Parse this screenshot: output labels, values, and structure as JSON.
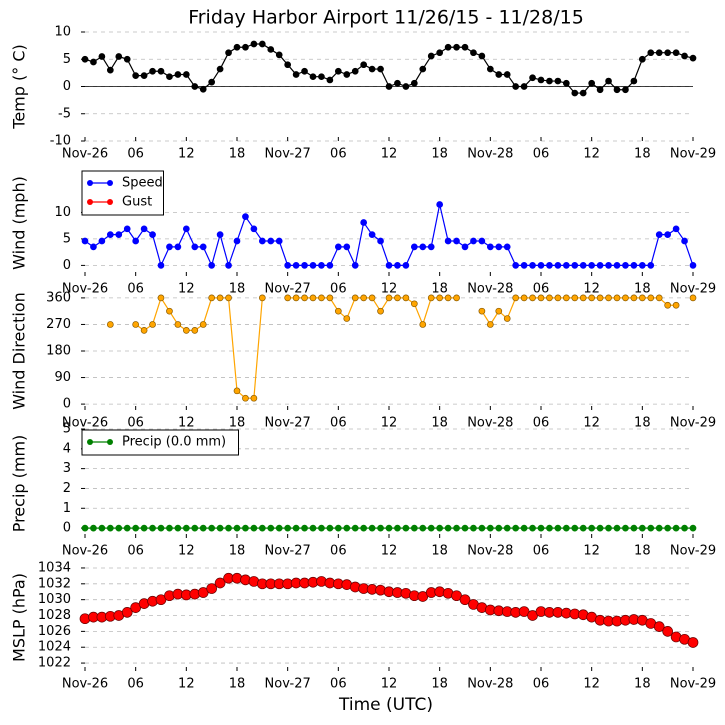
{
  "chart_data": [
    {
      "type": "line",
      "title": "Friday Harbor Airport 11/26/15 - 11/28/15",
      "ylabel": "Temp (° C)",
      "x": [
        0,
        1,
        2,
        3,
        4,
        5,
        6,
        7,
        8,
        9,
        10,
        11,
        12,
        13,
        14,
        15,
        16,
        17,
        18,
        19,
        20,
        21,
        22,
        23,
        24,
        25,
        26,
        27,
        28,
        29,
        30,
        31,
        32,
        33,
        34,
        35,
        36,
        37,
        38,
        39,
        40,
        41,
        42,
        43,
        44,
        45,
        46,
        47,
        48,
        49,
        50,
        51,
        52,
        53,
        54,
        55,
        56,
        57,
        58,
        59,
        60,
        61,
        62,
        63,
        64,
        65,
        66,
        67,
        68,
        69,
        70,
        71,
        72
      ],
      "xlim": [
        0,
        72
      ],
      "xticks": [
        {
          "value": 0,
          "label": "Nov-26"
        },
        {
          "value": 6,
          "label": "06"
        },
        12,
        18,
        {
          "value": 24,
          "label": "Nov-27"
        },
        {
          "value": 30,
          "label": "06"
        },
        {
          "value": 36,
          "label": "12"
        },
        {
          "value": 42,
          "label": "18"
        },
        {
          "value": 48,
          "label": "Nov-28"
        },
        {
          "value": 54,
          "label": "06"
        },
        {
          "value": 60,
          "label": "12"
        },
        {
          "value": 66,
          "label": "18"
        },
        {
          "value": 72,
          "label": "Nov-29"
        }
      ],
      "ylim": [
        -10,
        10
      ],
      "yticks": [
        -10,
        -5,
        0,
        5,
        10
      ],
      "grid": true,
      "hline": 0,
      "series": [
        {
          "name": null,
          "color": "#000000",
          "values": [
            5,
            4.5,
            5.5,
            3,
            5.5,
            5,
            2,
            2,
            2.8,
            2.8,
            1.8,
            2.2,
            2.2,
            0,
            -0.5,
            0.8,
            3.2,
            6.2,
            7.2,
            7.2,
            7.8,
            7.8,
            6.8,
            5.8,
            4,
            2.2,
            2.8,
            1.8,
            1.8,
            1.2,
            2.8,
            2.2,
            2.8,
            4,
            3.2,
            3.2,
            0,
            0.6,
            0,
            0.6,
            3.2,
            5.6,
            6.2,
            7.2,
            7.2,
            7.2,
            6.2,
            5.6,
            3.2,
            2.2,
            2.2,
            0,
            0,
            1.6,
            1.2,
            1,
            1,
            0.6,
            -1.2,
            -1.2,
            0.6,
            -0.6,
            1,
            -0.6,
            -0.6,
            1,
            5,
            6.2,
            6.2,
            6.2,
            6.2,
            5.6,
            5.2
          ]
        }
      ]
    },
    {
      "type": "line",
      "ylabel": "Wind (mph)",
      "legend": "upper left",
      "x": [
        0,
        1,
        2,
        3,
        4,
        5,
        6,
        7,
        8,
        9,
        10,
        11,
        12,
        13,
        14,
        15,
        16,
        17,
        18,
        19,
        20,
        21,
        22,
        23,
        24,
        25,
        26,
        27,
        28,
        29,
        30,
        31,
        32,
        33,
        34,
        35,
        36,
        37,
        38,
        39,
        40,
        41,
        42,
        43,
        44,
        45,
        46,
        47,
        48,
        49,
        50,
        51,
        52,
        53,
        54,
        55,
        56,
        57,
        58,
        59,
        60,
        61,
        62,
        63,
        64,
        65,
        66,
        67,
        68,
        69,
        70,
        71,
        72
      ],
      "xlim": [
        0,
        72
      ],
      "xticks": [
        {
          "value": 0,
          "label": "Nov-26"
        },
        {
          "value": 6,
          "label": "06"
        },
        12,
        18,
        {
          "value": 24,
          "label": "Nov-27"
        },
        {
          "value": 30,
          "label": "06"
        },
        {
          "value": 36,
          "label": "12"
        },
        {
          "value": 42,
          "label": "18"
        },
        {
          "value": 48,
          "label": "Nov-28"
        },
        {
          "value": 54,
          "label": "06"
        },
        {
          "value": 60,
          "label": "12"
        },
        {
          "value": 66,
          "label": "18"
        },
        {
          "value": 72,
          "label": "Nov-29"
        }
      ],
      "ylim": [
        -2,
        18
      ],
      "yticks": [
        0,
        5,
        10
      ],
      "grid": true,
      "series": [
        {
          "name": "Speed",
          "color": "#0000ff",
          "values": [
            4.6,
            3.5,
            4.6,
            5.8,
            5.8,
            6.9,
            4.6,
            6.9,
            5.8,
            0,
            3.5,
            3.5,
            6.9,
            3.5,
            3.5,
            0,
            5.8,
            0,
            4.6,
            9.2,
            6.9,
            4.6,
            4.6,
            4.6,
            0,
            0,
            0,
            0,
            0,
            0,
            3.5,
            3.5,
            0,
            8.1,
            5.8,
            4.6,
            0,
            0,
            0,
            3.5,
            3.5,
            3.5,
            11.5,
            4.6,
            4.6,
            3.5,
            4.6,
            4.6,
            3.5,
            3.5,
            3.5,
            0,
            0,
            0,
            0,
            0,
            0,
            0,
            0,
            0,
            0,
            0,
            0,
            0,
            0,
            0,
            0,
            0,
            5.8,
            5.8,
            6.9,
            4.6,
            0
          ]
        },
        {
          "name": "Gust",
          "color": "#ff0000",
          "values": [
            null,
            null,
            null,
            null,
            null,
            null,
            null,
            null,
            null,
            null,
            null,
            null,
            null,
            null,
            null,
            null,
            null,
            null,
            null,
            null,
            null,
            null,
            null,
            null,
            null,
            null,
            null,
            null,
            null,
            null,
            null,
            null,
            null,
            null,
            null,
            null,
            null,
            null,
            null,
            null,
            null,
            null,
            null,
            null,
            null,
            null,
            null,
            null,
            null,
            null,
            null,
            null,
            null,
            null,
            null,
            null,
            null,
            null,
            null,
            null,
            null,
            null,
            null,
            null,
            null,
            null,
            null,
            null,
            null,
            null,
            null,
            null,
            null
          ]
        }
      ]
    },
    {
      "type": "line",
      "ylabel": "Wind Direction",
      "x": [
        0,
        1,
        2,
        3,
        4,
        5,
        6,
        7,
        8,
        9,
        10,
        11,
        12,
        13,
        14,
        15,
        16,
        17,
        18,
        19,
        20,
        21,
        22,
        23,
        24,
        25,
        26,
        27,
        28,
        29,
        30,
        31,
        32,
        33,
        34,
        35,
        36,
        37,
        38,
        39,
        40,
        41,
        42,
        43,
        44,
        45,
        46,
        47,
        48,
        49,
        50,
        51,
        52,
        53,
        54,
        55,
        56,
        57,
        58,
        59,
        60,
        61,
        62,
        63,
        64,
        65,
        66,
        67,
        68,
        69,
        70,
        71,
        72
      ],
      "xlim": [
        0,
        72
      ],
      "xticks": [
        {
          "value": 0,
          "label": "Nov-26"
        },
        {
          "value": 6,
          "label": "06"
        },
        12,
        18,
        {
          "value": 24,
          "label": "Nov-27"
        },
        {
          "value": 30,
          "label": "06"
        },
        {
          "value": 36,
          "label": "12"
        },
        {
          "value": 42,
          "label": "18"
        },
        {
          "value": 48,
          "label": "Nov-28"
        },
        {
          "value": 54,
          "label": "06"
        },
        {
          "value": 60,
          "label": "12"
        },
        {
          "value": 66,
          "label": "18"
        },
        {
          "value": 72,
          "label": "Nov-29"
        }
      ],
      "ylim": [
        -20,
        380
      ],
      "yticks": [
        0,
        90,
        180,
        270,
        360
      ],
      "grid": true,
      "series": [
        {
          "name": null,
          "color": "#ffa500",
          "values": [
            null,
            null,
            null,
            270,
            null,
            null,
            270,
            250,
            270,
            360,
            315,
            270,
            250,
            250,
            270,
            360,
            360,
            360,
            45,
            20,
            20,
            360,
            null,
            null,
            360,
            360,
            360,
            360,
            360,
            360,
            315,
            290,
            360,
            360,
            360,
            315,
            360,
            360,
            360,
            340,
            270,
            360,
            360,
            360,
            360,
            null,
            null,
            315,
            270,
            315,
            290,
            360,
            360,
            360,
            360,
            360,
            360,
            360,
            360,
            360,
            360,
            360,
            360,
            360,
            360,
            360,
            360,
            360,
            360,
            335,
            335,
            null,
            360
          ]
        }
      ]
    },
    {
      "type": "line",
      "ylabel": "Precip (mm)",
      "legend": "upper left",
      "x": [
        0,
        1,
        2,
        3,
        4,
        5,
        6,
        7,
        8,
        9,
        10,
        11,
        12,
        13,
        14,
        15,
        16,
        17,
        18,
        19,
        20,
        21,
        22,
        23,
        24,
        25,
        26,
        27,
        28,
        29,
        30,
        31,
        32,
        33,
        34,
        35,
        36,
        37,
        38,
        39,
        40,
        41,
        42,
        43,
        44,
        45,
        46,
        47,
        48,
        49,
        50,
        51,
        52,
        53,
        54,
        55,
        56,
        57,
        58,
        59,
        60,
        61,
        62,
        63,
        64,
        65,
        66,
        67,
        68,
        69,
        70,
        71,
        72
      ],
      "xlim": [
        0,
        72
      ],
      "xticks": [
        {
          "value": 0,
          "label": "Nov-26"
        },
        {
          "value": 6,
          "label": "06"
        },
        12,
        18,
        {
          "value": 24,
          "label": "Nov-27"
        },
        {
          "value": 30,
          "label": "06"
        },
        {
          "value": 36,
          "label": "12"
        },
        {
          "value": 42,
          "label": "18"
        },
        {
          "value": 48,
          "label": "Nov-28"
        },
        {
          "value": 54,
          "label": "06"
        },
        {
          "value": 60,
          "label": "12"
        },
        {
          "value": 66,
          "label": "18"
        },
        {
          "value": 72,
          "label": "Nov-29"
        }
      ],
      "ylim": [
        -0.5,
        5
      ],
      "yticks": [
        0,
        1,
        2,
        3,
        4,
        5
      ],
      "grid": true,
      "series": [
        {
          "name": "Precip (0.0 mm)",
          "color": "#008000",
          "values": [
            0,
            0,
            0,
            0,
            0,
            0,
            0,
            0,
            0,
            0,
            0,
            0,
            0,
            0,
            0,
            0,
            0,
            0,
            0,
            0,
            0,
            0,
            0,
            0,
            0,
            0,
            0,
            0,
            0,
            0,
            0,
            0,
            0,
            0,
            0,
            0,
            0,
            0,
            0,
            0,
            0,
            0,
            0,
            0,
            0,
            0,
            0,
            0,
            0,
            0,
            0,
            0,
            0,
            0,
            0,
            0,
            0,
            0,
            0,
            0,
            0,
            0,
            0,
            0,
            0,
            0,
            0,
            0,
            0,
            0,
            0,
            0,
            0
          ]
        }
      ]
    },
    {
      "type": "scatter",
      "ylabel": "MSLP (hPa)",
      "xlabel": "Time (UTC)",
      "x": [
        0,
        1,
        2,
        3,
        4,
        5,
        6,
        7,
        8,
        9,
        10,
        11,
        12,
        13,
        14,
        15,
        16,
        17,
        18,
        19,
        20,
        21,
        22,
        23,
        24,
        25,
        26,
        27,
        28,
        29,
        30,
        31,
        32,
        33,
        34,
        35,
        36,
        37,
        38,
        39,
        40,
        41,
        42,
        43,
        44,
        45,
        46,
        47,
        48,
        49,
        50,
        51,
        52,
        53,
        54,
        55,
        56,
        57,
        58,
        59,
        60,
        61,
        62,
        63,
        64,
        65,
        66,
        67,
        68,
        69,
        70,
        71,
        72
      ],
      "xlim": [
        0,
        72
      ],
      "xticks": [
        {
          "value": 0,
          "label": "Nov-26"
        },
        {
          "value": 6,
          "label": "06"
        },
        12,
        18,
        {
          "value": 24,
          "label": "Nov-27"
        },
        {
          "value": 30,
          "label": "06"
        },
        {
          "value": 36,
          "label": "12"
        },
        {
          "value": 42,
          "label": "18"
        },
        {
          "value": 48,
          "label": "Nov-28"
        },
        {
          "value": 54,
          "label": "06"
        },
        {
          "value": 60,
          "label": "12"
        },
        {
          "value": 66,
          "label": "18"
        },
        {
          "value": 72,
          "label": "Nov-29"
        }
      ],
      "ylim": [
        1021,
        1034.5
      ],
      "yticks": [
        1022,
        1024,
        1026,
        1028,
        1030,
        1032,
        1034
      ],
      "grid": true,
      "series": [
        {
          "name": null,
          "color": "#ff0000",
          "values": [
            1027.6,
            1027.8,
            1027.8,
            1027.9,
            1028,
            1028.4,
            1029,
            1029.5,
            1029.8,
            1030,
            1030.5,
            1030.7,
            1030.6,
            1030.7,
            1030.9,
            1031.4,
            1032.1,
            1032.7,
            1032.7,
            1032.5,
            1032.3,
            1032,
            1032,
            1032,
            1032,
            1032.1,
            1032.1,
            1032.2,
            1032.3,
            1032.1,
            1032,
            1031.9,
            1031.6,
            1031.4,
            1031.3,
            1031.2,
            1031,
            1030.9,
            1030.8,
            1030.5,
            1030.4,
            1030.9,
            1031,
            1030.8,
            1030.5,
            1030,
            1029.4,
            1029,
            1028.7,
            1028.6,
            1028.5,
            1028.4,
            1028.5,
            1028,
            1028.5,
            1028.4,
            1028.4,
            1028.3,
            1028.2,
            1028.1,
            1027.8,
            1027.4,
            1027.3,
            1027.3,
            1027.4,
            1027.5,
            1027.4,
            1027,
            1026.6,
            1026,
            1025.3,
            1025,
            1024.6
          ]
        }
      ]
    }
  ]
}
